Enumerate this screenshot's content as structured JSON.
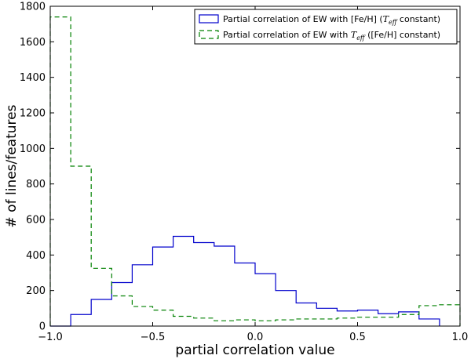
{
  "chart_data": {
    "type": "histogram",
    "title": "",
    "xlabel": "partial correlation value",
    "ylabel": "# of lines/features",
    "xlim": [
      -1.0,
      1.0
    ],
    "ylim": [
      0,
      1800
    ],
    "xticks": [
      -1.0,
      -0.5,
      0.0,
      0.5,
      1.0
    ],
    "xtick_labels": [
      "−1.0",
      "−0.5",
      "0.0",
      "0.5",
      "1.0"
    ],
    "yticks": [
      0,
      200,
      400,
      600,
      800,
      1000,
      1200,
      1400,
      1600,
      1800
    ],
    "ytick_labels": [
      "0",
      "200",
      "400",
      "600",
      "800",
      "1000",
      "1200",
      "1400",
      "1600",
      "1800"
    ],
    "legend_position": "top-right",
    "series": [
      {
        "name": "feh",
        "legend_label": "Partial correlation of EW with [Fe/H] (T_eff constant)",
        "legend_prefix": "Partial correlation of EW with [Fe/H] (",
        "legend_math": "T",
        "legend_math_sub": "eff",
        "legend_suffix": " constant)",
        "color": "#0000cc",
        "style": "solid",
        "bin_edges": [
          -1.0,
          -0.9,
          -0.8,
          -0.7,
          -0.6,
          -0.5,
          -0.4,
          -0.3,
          -0.2,
          -0.1,
          0.0,
          0.1,
          0.2,
          0.3,
          0.4,
          0.5,
          0.6,
          0.7,
          0.8,
          0.9
        ],
        "values": [
          0,
          65,
          150,
          245,
          345,
          445,
          505,
          470,
          450,
          355,
          295,
          200,
          130,
          100,
          85,
          90,
          70,
          80,
          40
        ]
      },
      {
        "name": "teff",
        "legend_label": "Partial correlation of EW with T_eff ([Fe/H] constant)",
        "legend_prefix": "Partial correlation of EW with ",
        "legend_math": "T",
        "legend_math_sub": "eff",
        "legend_suffix": " ([Fe/H] constant)",
        "color": "#008000",
        "style": "dashed",
        "bin_edges": [
          -1.0,
          -0.9,
          -0.8,
          -0.7,
          -0.6,
          -0.5,
          -0.4,
          -0.3,
          -0.2,
          -0.1,
          0.0,
          0.1,
          0.2,
          0.3,
          0.4,
          0.5,
          0.6,
          0.7,
          0.8,
          0.9,
          1.0
        ],
        "values": [
          1740,
          900,
          325,
          170,
          110,
          90,
          55,
          45,
          30,
          35,
          30,
          35,
          40,
          40,
          45,
          50,
          50,
          65,
          115,
          120
        ]
      }
    ],
    "legend_labels_markup_note": "legend uses italic math T with subscript eff"
  }
}
